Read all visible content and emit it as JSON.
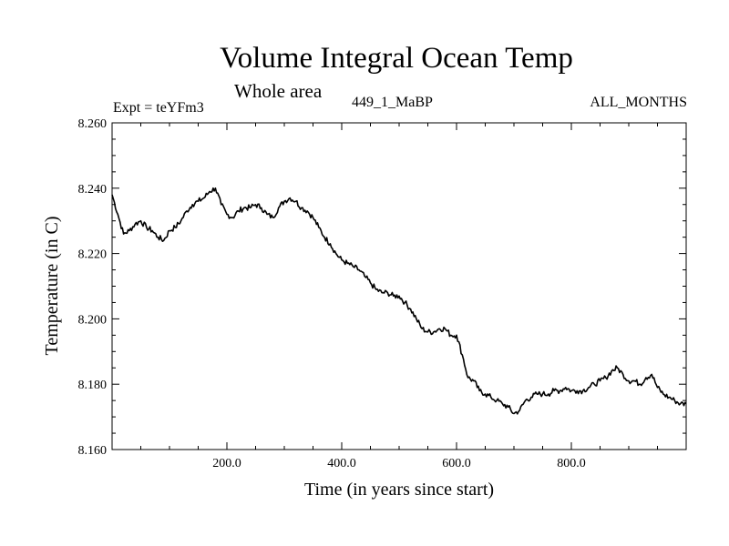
{
  "header": {
    "title": "Volume Integral Ocean Temp",
    "subtitle": "Whole area",
    "expt": "Expt = teYFm3",
    "run_id": "449_1_MaBP",
    "months": "ALL_MONTHS"
  },
  "chart_data": {
    "type": "line",
    "title": "Volume Integral Ocean Temp",
    "xlabel": "Time (in years since start)",
    "ylabel": "Temperature (in C)",
    "xlim": [
      0,
      1000
    ],
    "ylim": [
      8.16,
      8.26
    ],
    "x_ticks": [
      200,
      400,
      600,
      800
    ],
    "x_tick_labels": [
      "200.0",
      "400.0",
      "600.0",
      "800.0"
    ],
    "y_ticks": [
      8.16,
      8.18,
      8.2,
      8.22,
      8.24,
      8.26
    ],
    "y_tick_labels": [
      "8.160",
      "8.180",
      "8.200",
      "8.220",
      "8.240",
      "8.260"
    ],
    "grid": false,
    "series": [
      {
        "name": "Volume Integral Ocean Temp",
        "x": [
          0,
          10,
          20,
          30,
          40,
          50,
          60,
          70,
          80,
          90,
          100,
          110,
          120,
          130,
          140,
          150,
          160,
          170,
          180,
          190,
          200,
          210,
          220,
          230,
          240,
          250,
          260,
          270,
          280,
          290,
          300,
          310,
          320,
          330,
          340,
          350,
          360,
          370,
          380,
          390,
          400,
          410,
          420,
          430,
          440,
          450,
          460,
          470,
          480,
          490,
          500,
          510,
          520,
          530,
          540,
          550,
          560,
          570,
          580,
          590,
          600,
          610,
          620,
          630,
          640,
          650,
          660,
          670,
          680,
          690,
          700,
          710,
          720,
          730,
          740,
          750,
          760,
          770,
          780,
          790,
          800,
          810,
          820,
          830,
          840,
          850,
          860,
          870,
          880,
          890,
          900,
          910,
          920,
          930,
          940,
          950,
          960,
          970,
          980,
          990,
          1000
        ],
        "values": [
          8.238,
          8.232,
          8.226,
          8.227,
          8.229,
          8.23,
          8.228,
          8.227,
          8.225,
          8.224,
          8.227,
          8.228,
          8.23,
          8.233,
          8.235,
          8.236,
          8.237,
          8.239,
          8.24,
          8.235,
          8.232,
          8.231,
          8.233,
          8.234,
          8.234,
          8.235,
          8.234,
          8.232,
          8.231,
          8.234,
          8.236,
          8.237,
          8.236,
          8.234,
          8.233,
          8.231,
          8.228,
          8.225,
          8.223,
          8.22,
          8.218,
          8.217,
          8.216,
          8.215,
          8.213,
          8.211,
          8.209,
          8.208,
          8.208,
          8.207,
          8.207,
          8.205,
          8.203,
          8.2,
          8.197,
          8.196,
          8.196,
          8.197,
          8.197,
          8.195,
          8.195,
          8.189,
          8.182,
          8.181,
          8.178,
          8.177,
          8.176,
          8.175,
          8.174,
          8.173,
          8.171,
          8.172,
          8.175,
          8.176,
          8.177,
          8.177,
          8.177,
          8.178,
          8.178,
          8.179,
          8.178,
          8.178,
          8.178,
          8.179,
          8.18,
          8.181,
          8.182,
          8.184,
          8.185,
          8.183,
          8.181,
          8.181,
          8.18,
          8.182,
          8.183,
          8.179,
          8.177,
          8.176,
          8.175,
          8.174,
          8.174
        ]
      }
    ]
  }
}
